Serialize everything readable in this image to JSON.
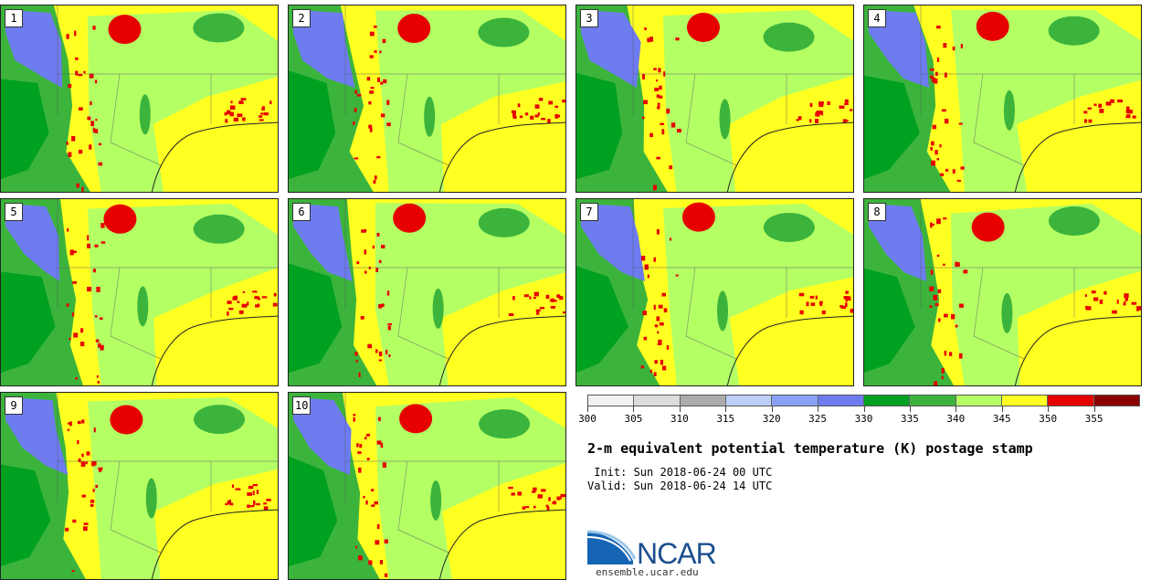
{
  "stamps": [
    {
      "number": "1"
    },
    {
      "number": "2"
    },
    {
      "number": "3"
    },
    {
      "number": "4"
    },
    {
      "number": "5"
    },
    {
      "number": "6"
    },
    {
      "number": "7"
    },
    {
      "number": "8"
    },
    {
      "number": "9"
    },
    {
      "number": "10"
    }
  ],
  "colorbar": {
    "labels": [
      "300",
      "305",
      "310",
      "315",
      "320",
      "325",
      "330",
      "335",
      "340",
      "345",
      "350",
      "355"
    ],
    "colors": [
      "#f2f2f2",
      "#dcdcdc",
      "#ababab",
      "#bcd0f7",
      "#8aa0f5",
      "#6e7cf0",
      "#00a020",
      "#3cb43c",
      "#b4ff64",
      "#ffff22",
      "#e60000",
      "#8b0000"
    ]
  },
  "title": "2-m equivalent potential temperature (K) postage stamp",
  "init": " Init: Sun 2018-06-24 00 UTC",
  "valid": "Valid: Sun 2018-06-24 14 UTC",
  "logo": {
    "text": "NCAR",
    "url": "ensemble.ucar.edu"
  },
  "colors": {
    "yellow": "#ffff22",
    "light_green": "#b4ff64",
    "mid_green": "#3cb43c",
    "dark_green": "#00a020",
    "blue": "#6e7cf0",
    "red": "#e60000"
  }
}
